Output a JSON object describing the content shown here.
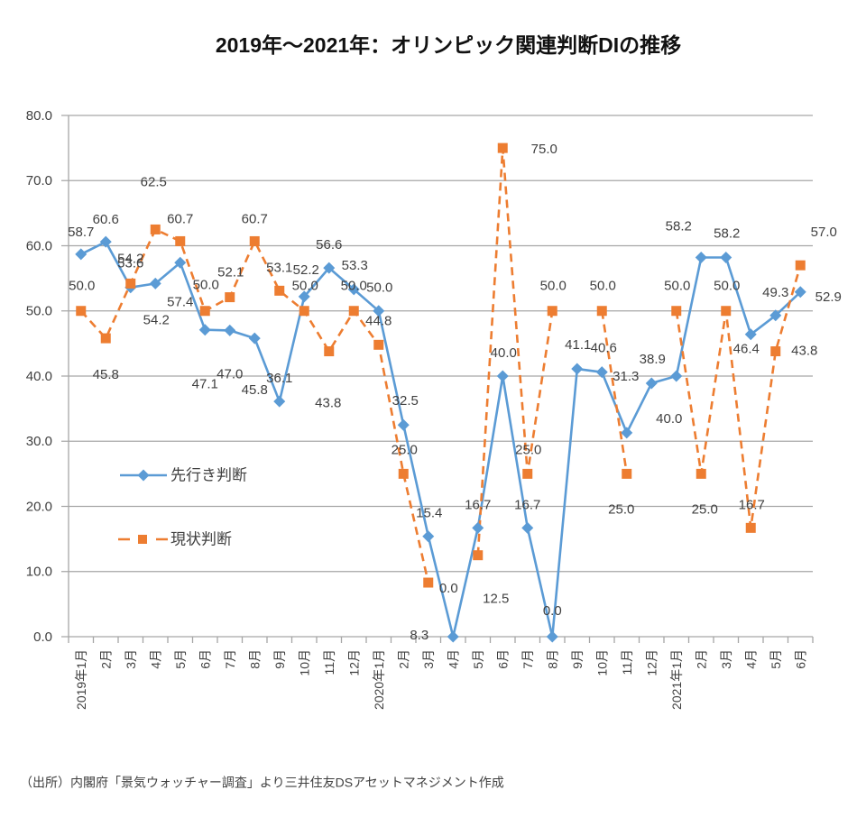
{
  "chart_data": {
    "type": "line",
    "title": "2019年～2021年：オリンピック関連判断DIの推移",
    "xlabel": "",
    "ylabel": "",
    "ylim": [
      0,
      80
    ],
    "yticks": [
      "0.0",
      "10.0",
      "20.0",
      "30.0",
      "40.0",
      "50.0",
      "60.0",
      "70.0",
      "80.0"
    ],
    "grid": true,
    "legend_position": "inside-left",
    "categories": [
      "2019年1月",
      "2月",
      "3月",
      "4月",
      "5月",
      "6月",
      "7月",
      "8月",
      "9月",
      "10月",
      "11月",
      "12月",
      "2020年1月",
      "2月",
      "3月",
      "4月",
      "5月",
      "6月",
      "7月",
      "8月",
      "9月",
      "10月",
      "11月",
      "12月",
      "2021年1月",
      "2月",
      "3月",
      "4月",
      "5月",
      "6月"
    ],
    "series": [
      {
        "name": "先行き判断",
        "color": "#5B9BD5",
        "line_style": "solid",
        "marker": "diamond",
        "values": [
          58.7,
          60.6,
          53.6,
          54.2,
          57.4,
          47.1,
          47.0,
          45.8,
          36.1,
          52.2,
          56.6,
          53.3,
          50.0,
          32.5,
          15.4,
          0.0,
          16.7,
          40.0,
          16.7,
          0.0,
          41.1,
          40.6,
          31.3,
          38.9,
          40.0,
          58.2,
          58.2,
          46.4,
          49.3,
          52.9
        ],
        "data_labels": [
          "58.7",
          "60.6",
          "53.6",
          "54.2",
          "57.4",
          "47.1",
          "47.0",
          "45.8",
          "36.1",
          "52.2",
          "56.6",
          "53.3",
          "50.0",
          "32.5",
          "15.4",
          "0.0",
          "16.7",
          "40.0",
          "16.7",
          "0.0",
          "41.1",
          "40.6",
          "31.3",
          "38.9",
          "40.0",
          "58.2",
          "58.2",
          "46.4",
          "49.3",
          "52.9"
        ]
      },
      {
        "name": "現状判断",
        "color": "#ED7D31",
        "line_style": "dashed",
        "marker": "square",
        "values": [
          50.0,
          45.8,
          54.2,
          62.5,
          60.7,
          50.0,
          52.1,
          60.7,
          53.1,
          50.0,
          43.8,
          50.0,
          44.8,
          25.0,
          8.3,
          null,
          12.5,
          75.0,
          25.0,
          50.0,
          null,
          50.0,
          25.0,
          null,
          50.0,
          25.0,
          50.0,
          16.7,
          43.8,
          57.0
        ],
        "data_labels": [
          "50.0",
          "45.8",
          "54.2",
          "62.5",
          "60.7",
          "50.0",
          "52.1",
          "60.7",
          "53.1",
          "50.0",
          "43.8",
          "50.0",
          "44.8",
          "25.0",
          "8.3",
          null,
          "12.5",
          "75.0",
          "25.0",
          "50.0",
          null,
          "50.0",
          "25.0",
          null,
          "50.0",
          "25.0",
          "50.0",
          "16.7",
          "43.8",
          "57.0"
        ]
      }
    ],
    "source_note": "（出所）内閣府「景気ウォッチャー調査」より三井住友DSアセットマネジメント作成"
  }
}
